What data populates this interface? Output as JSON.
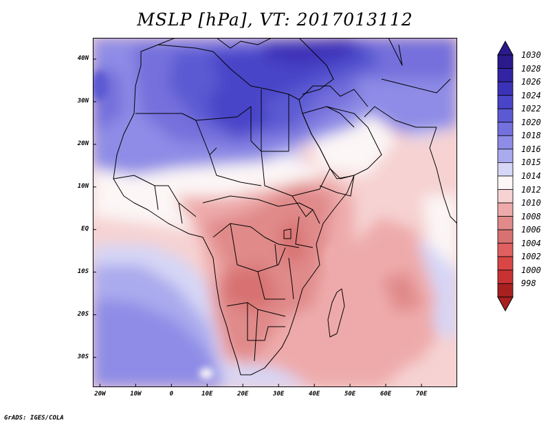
{
  "title": "MSLP [hPa], VT: 2017013112",
  "footer": "GrADS: IGES/COLA",
  "map": {
    "region": "Africa and Middle East",
    "lon_range": [
      -22,
      80
    ],
    "lat_range": [
      -37,
      45
    ],
    "lat_labels": [
      {
        "lat": 40,
        "label": "40N"
      },
      {
        "lat": 30,
        "label": "30N"
      },
      {
        "lat": 20,
        "label": "20N"
      },
      {
        "lat": 10,
        "label": "10N"
      },
      {
        "lat": 0,
        "label": "EQ"
      },
      {
        "lat": -10,
        "label": "10S"
      },
      {
        "lat": -20,
        "label": "20S"
      },
      {
        "lat": -30,
        "label": "30S"
      }
    ],
    "lon_labels": [
      {
        "lon": -20,
        "label": "20W"
      },
      {
        "lon": -10,
        "label": "10W"
      },
      {
        "lon": 0,
        "label": "0"
      },
      {
        "lon": 10,
        "label": "10E"
      },
      {
        "lon": 20,
        "label": "20E"
      },
      {
        "lon": 30,
        "label": "30E"
      },
      {
        "lon": 40,
        "label": "40E"
      },
      {
        "lon": 50,
        "label": "50E"
      },
      {
        "lon": 60,
        "label": "60E"
      },
      {
        "lon": 70,
        "label": "70E"
      }
    ]
  },
  "colorbar": {
    "levels": [
      {
        "label": "1030",
        "color": "#2a1a8c"
      },
      {
        "label": "1028",
        "color": "#3324a4"
      },
      {
        "label": "1026",
        "color": "#3c32b8"
      },
      {
        "label": "1024",
        "color": "#4a44c8"
      },
      {
        "label": "1022",
        "color": "#5c5ad2"
      },
      {
        "label": "1020",
        "color": "#7470dc"
      },
      {
        "label": "1018",
        "color": "#8e8ce6"
      },
      {
        "label": "1016",
        "color": "#aaaaee"
      },
      {
        "label": "1015",
        "color": "#d6d6f6"
      },
      {
        "label": "1014",
        "color": "#fcf6f6"
      },
      {
        "label": "1012",
        "color": "#f6d2d2"
      },
      {
        "label": "1010",
        "color": "#eeaaaa"
      },
      {
        "label": "1008",
        "color": "#e08a8a"
      },
      {
        "label": "1006",
        "color": "#d87272"
      },
      {
        "label": "1004",
        "color": "#e06060"
      },
      {
        "label": "1002",
        "color": "#d84646"
      },
      {
        "label": "1000",
        "color": "#c83232"
      },
      {
        "label": "998",
        "color": "#a82020"
      }
    ],
    "top_color": "#2a1a8c",
    "bottom_color": "#a82020"
  },
  "fields": {
    "colors": {
      "ocean_lilac": "#aaaaee",
      "light_lilac": "#d6d6f6",
      "mid_blue": "#8e8ce6",
      "blue_1020": "#7470dc",
      "blue_1022": "#5c5ad2",
      "blue_1024": "#4a44c8",
      "blue_1026": "#3c32b8",
      "white": "#fcf6f6",
      "pink": "#f6d2d2",
      "salmon": "#eeaaaa",
      "rose": "#e08a8a",
      "deep_rose": "#d87272"
    }
  }
}
